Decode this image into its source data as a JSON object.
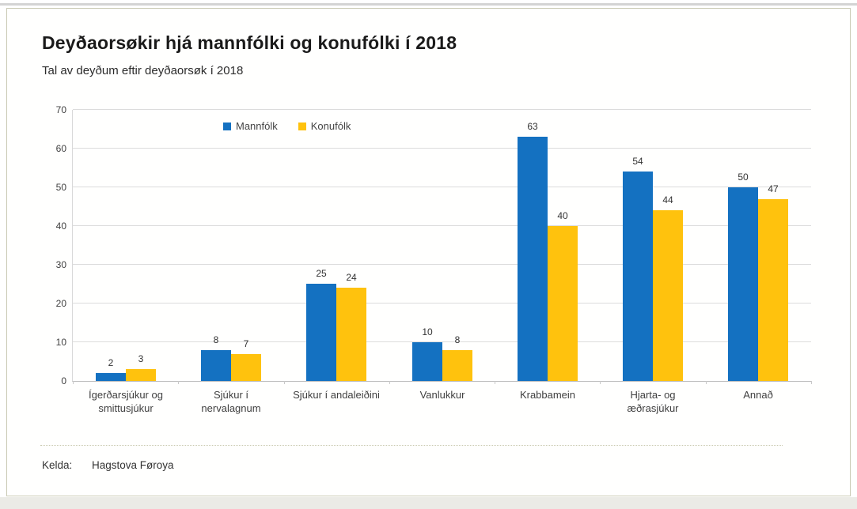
{
  "chart_data": {
    "type": "bar",
    "title": "Deyðaorsøkir hjá mannfólki og konufólki í 2018",
    "subtitle": "Tal av deyðum eftir deyðaorsøk í 2018",
    "categories": [
      "Ígerðarsjúkur og smittusjúkur",
      "Sjúkur í nervalagnum",
      "Sjúkur í andaleiðini",
      "Vanlukkur",
      "Krabbamein",
      "Hjarta- og æðrasjúkur",
      "Annað"
    ],
    "series": [
      {
        "name": "Mannfólk",
        "color": "#1471C1",
        "values": [
          2,
          8,
          25,
          10,
          63,
          54,
          50
        ]
      },
      {
        "name": "Konufólk",
        "color": "#FFC20D",
        "values": [
          3,
          7,
          24,
          8,
          40,
          44,
          47
        ]
      }
    ],
    "xlabel": "",
    "ylabel": "",
    "ylim": [
      0,
      70
    ],
    "yticks": [
      0,
      10,
      20,
      30,
      40,
      50,
      60,
      70
    ],
    "grid": true,
    "data_labels": true,
    "legend_position": "top-inside"
  },
  "footer": {
    "source_label": "Kelda:",
    "source_value": "Hagstova Føroya"
  }
}
